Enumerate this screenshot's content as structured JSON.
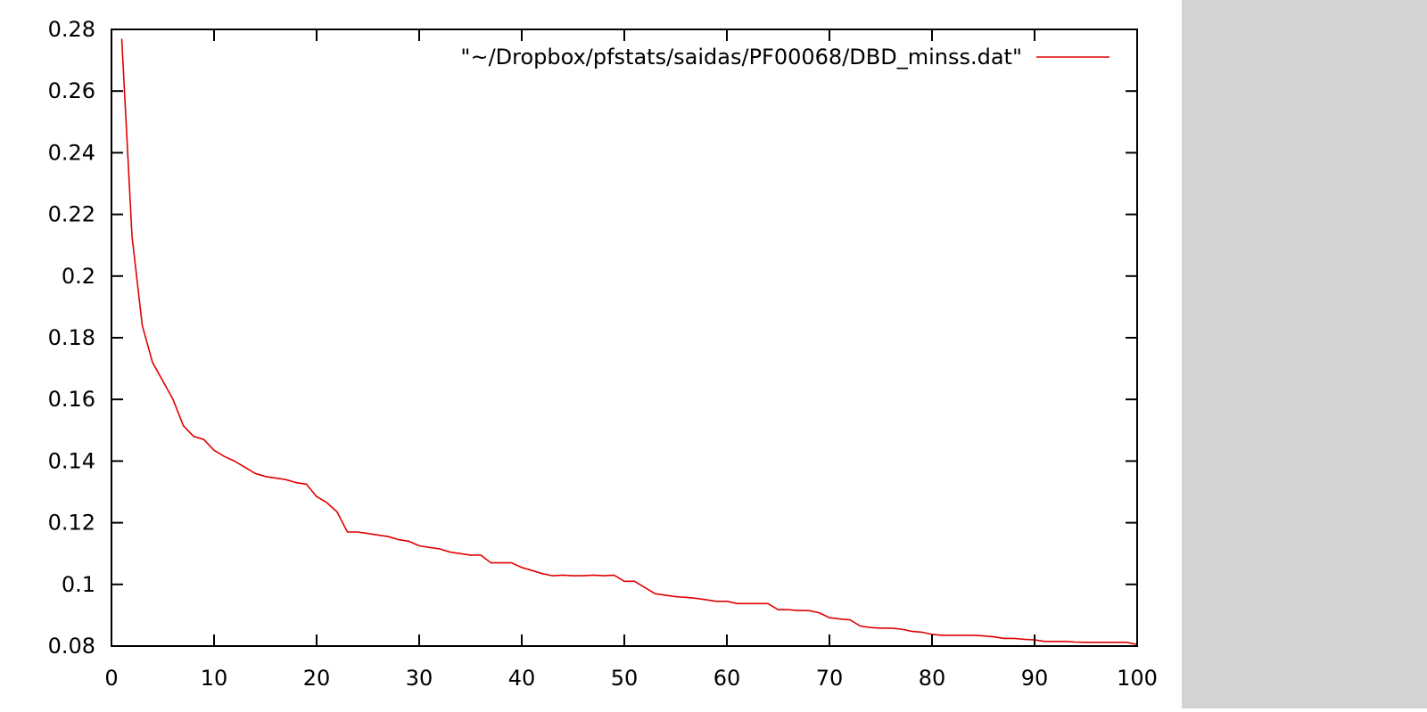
{
  "chart_data": {
    "type": "line",
    "title": "",
    "xlabel": "",
    "ylabel": "",
    "xlim": [
      0,
      100
    ],
    "ylim": [
      0.08,
      0.28
    ],
    "xticks": [
      0,
      10,
      20,
      30,
      40,
      50,
      60,
      70,
      80,
      90,
      100
    ],
    "xtick_labels": [
      "0",
      "10",
      "20",
      "30",
      "40",
      "50",
      "60",
      "70",
      "80",
      "90",
      "100"
    ],
    "yticks": [
      0.08,
      0.1,
      0.12,
      0.14,
      0.16,
      0.18,
      0.2,
      0.22,
      0.24,
      0.26,
      0.28
    ],
    "ytick_labels": [
      "0.08",
      "0.1",
      "0.12",
      "0.14",
      "0.16",
      "0.18",
      "0.2",
      "0.22",
      "0.24",
      "0.26",
      "0.28"
    ],
    "grid": false,
    "legend_position": "top-right",
    "series": [
      {
        "name": "\"~/Dropbox/pfstats/saidas/PF00068/DBD_minss.dat\"",
        "color": "#e00000",
        "x": [
          1,
          2,
          3,
          4,
          5,
          6,
          7,
          8,
          9,
          10,
          11,
          12,
          13,
          14,
          15,
          16,
          17,
          18,
          19,
          20,
          21,
          22,
          23,
          24,
          25,
          26,
          27,
          28,
          29,
          30,
          31,
          32,
          33,
          34,
          35,
          36,
          37,
          38,
          39,
          40,
          41,
          42,
          43,
          44,
          45,
          46,
          47,
          48,
          49,
          50,
          51,
          52,
          53,
          54,
          55,
          56,
          57,
          58,
          59,
          60,
          61,
          62,
          63,
          64,
          65,
          66,
          67,
          68,
          69,
          70,
          71,
          72,
          73,
          74,
          75,
          76,
          77,
          78,
          79,
          80,
          81,
          82,
          83,
          84,
          85,
          86,
          87,
          88,
          89,
          90,
          91,
          92,
          93,
          94,
          95,
          96,
          97,
          98,
          99,
          100
        ],
        "y": [
          0.277,
          0.213,
          0.184,
          0.172,
          0.166,
          0.16,
          0.1515,
          0.148,
          0.147,
          0.1435,
          0.1415,
          0.14,
          0.138,
          0.136,
          0.135,
          0.1345,
          0.134,
          0.133,
          0.1325,
          0.1285,
          0.1265,
          0.1235,
          0.117,
          0.117,
          0.1165,
          0.116,
          0.1155,
          0.1145,
          0.114,
          0.1125,
          0.112,
          0.1115,
          0.1105,
          0.11,
          0.1095,
          0.1095,
          0.107,
          0.107,
          0.107,
          0.1055,
          0.1045,
          0.1035,
          0.1028,
          0.103,
          0.1028,
          0.1028,
          0.103,
          0.1028,
          0.103,
          0.101,
          0.101,
          0.099,
          0.097,
          0.0965,
          0.096,
          0.0958,
          0.0955,
          0.095,
          0.0945,
          0.0945,
          0.0938,
          0.0938,
          0.0938,
          0.0938,
          0.0918,
          0.0918,
          0.0915,
          0.0915,
          0.0908,
          0.0892,
          0.0888,
          0.0885,
          0.0865,
          0.086,
          0.0858,
          0.0858,
          0.0855,
          0.0848,
          0.0845,
          0.0838,
          0.0835,
          0.0835,
          0.0835,
          0.0835,
          0.0833,
          0.083,
          0.0825,
          0.0825,
          0.0822,
          0.082,
          0.0815,
          0.0815,
          0.0815,
          0.0813,
          0.0812,
          0.0812,
          0.0812,
          0.0812,
          0.0812,
          0.0805
        ]
      }
    ]
  }
}
